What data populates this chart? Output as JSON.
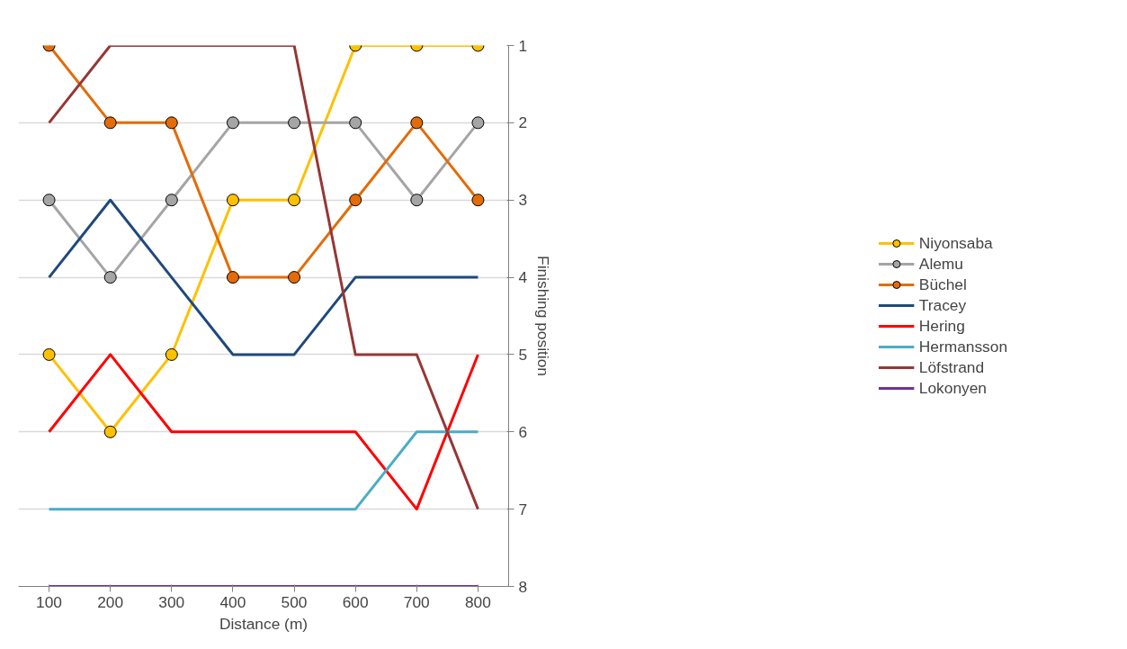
{
  "chart_data": {
    "type": "line",
    "xlabel": "Distance (m)",
    "ylabel": "Finishing position",
    "categories": [
      "100",
      "200",
      "300",
      "400",
      "500",
      "600",
      "700",
      "800"
    ],
    "ylim": [
      8,
      1
    ],
    "yticks": [
      1,
      2,
      3,
      4,
      5,
      6,
      7,
      8
    ],
    "grid": "y",
    "legend": "right",
    "series": [
      {
        "name": "Niyonsaba",
        "color": "#ffc000",
        "marker": "circle",
        "values": [
          5,
          6,
          5,
          3,
          3,
          1,
          1,
          1
        ]
      },
      {
        "name": "Alemu",
        "color": "#a5a5a5",
        "marker": "circle",
        "values": [
          3,
          4,
          3,
          2,
          2,
          2,
          3,
          2
        ]
      },
      {
        "name": "Büchel",
        "color": "#e36c09",
        "marker": "circle",
        "values": [
          1,
          2,
          2,
          4,
          4,
          3,
          2,
          3
        ]
      },
      {
        "name": "Tracey",
        "color": "#1f497d",
        "marker": "none",
        "values": [
          4,
          3,
          4,
          5,
          5,
          4,
          4,
          4
        ]
      },
      {
        "name": "Hering",
        "color": "#ff0000",
        "marker": "none",
        "values": [
          6,
          5,
          6,
          6,
          6,
          6,
          7,
          5
        ]
      },
      {
        "name": "Hermansson",
        "color": "#4bacc6",
        "marker": "none",
        "values": [
          7,
          7,
          7,
          7,
          7,
          7,
          6,
          6
        ]
      },
      {
        "name": "Löfstrand",
        "color": "#953735",
        "marker": "none",
        "values": [
          2,
          1,
          1,
          1,
          1,
          5,
          5,
          7
        ]
      },
      {
        "name": "Lokonyen",
        "color": "#7030a0",
        "marker": "none",
        "values": [
          8,
          8,
          8,
          8,
          8,
          8,
          8,
          8
        ]
      }
    ]
  }
}
